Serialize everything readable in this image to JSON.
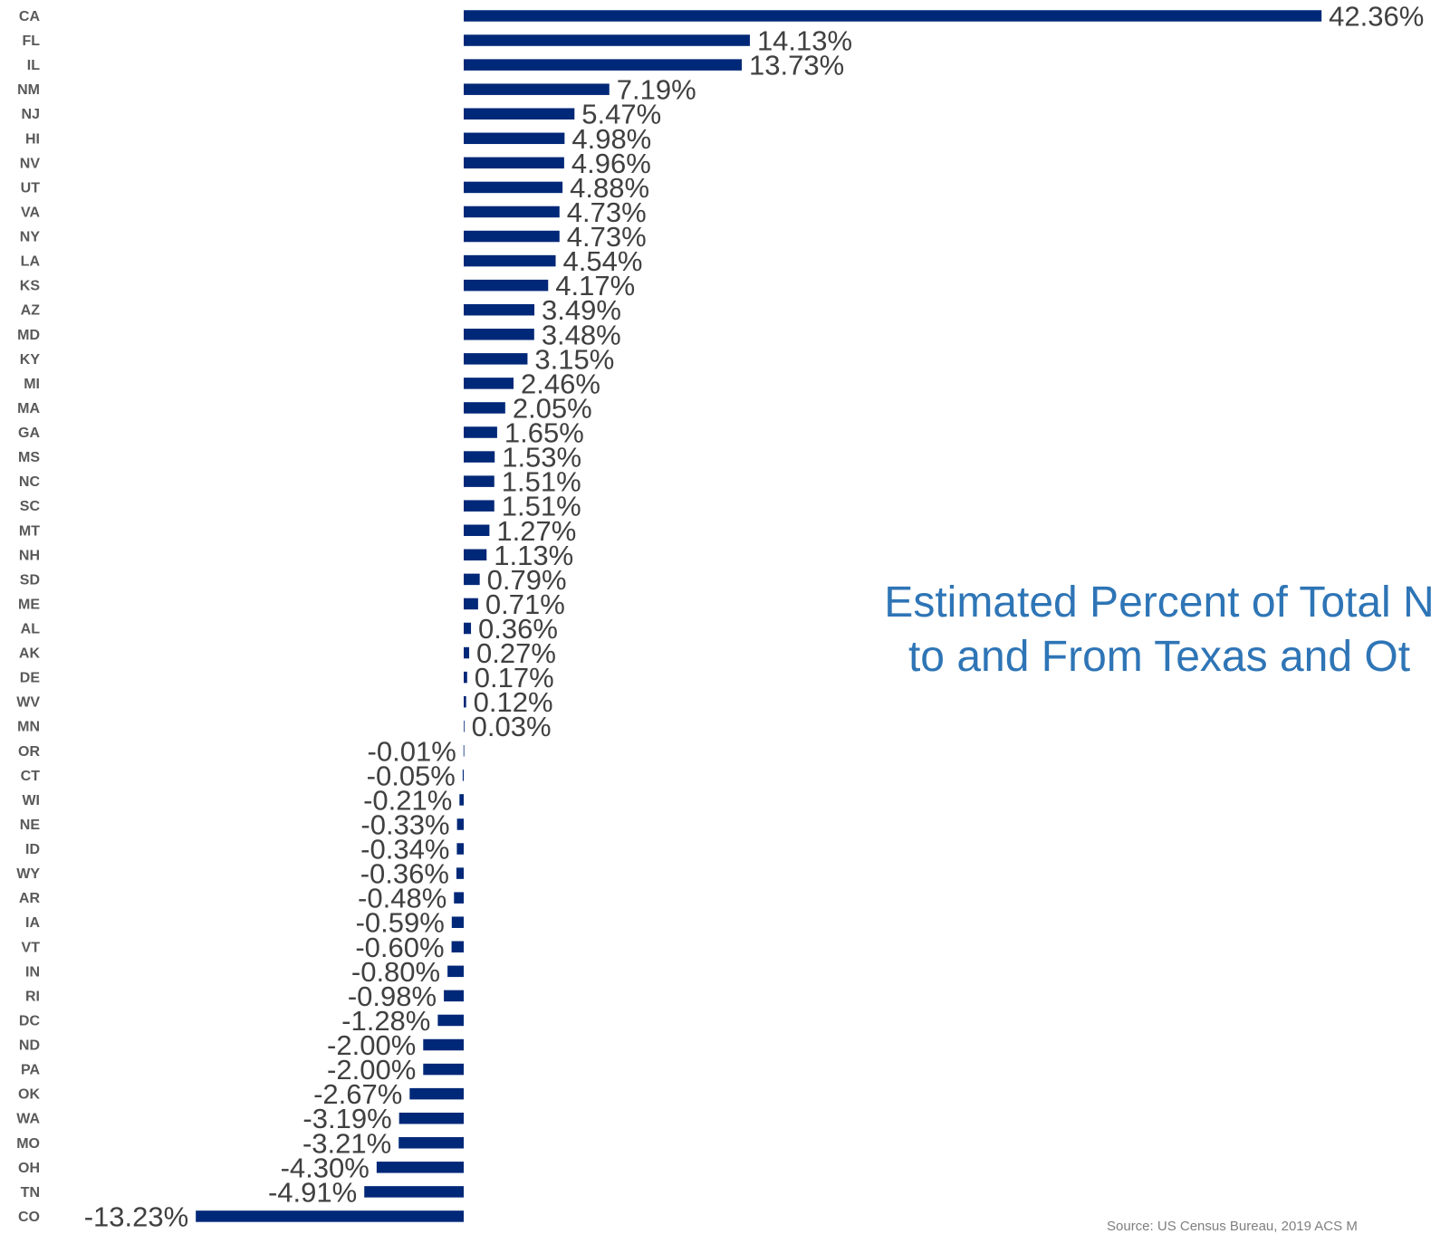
{
  "chart_data": {
    "type": "bar",
    "orientation": "horizontal",
    "title": "Estimated Percent of Total N\nto and From Texas and Ot",
    "source": "Source: US Census Bureau, 2019 ACS M",
    "bar_color": "#002878",
    "title_color": "#2e75b6",
    "categories": [
      "CA",
      "FL",
      "IL",
      "NM",
      "NJ",
      "HI",
      "NV",
      "UT",
      "VA",
      "NY",
      "LA",
      "KS",
      "AZ",
      "MD",
      "KY",
      "MI",
      "MA",
      "GA",
      "MS",
      "NC",
      "SC",
      "MT",
      "NH",
      "SD",
      "ME",
      "AL",
      "AK",
      "DE",
      "WV",
      "MN",
      "OR",
      "CT",
      "WI",
      "NE",
      "ID",
      "WY",
      "AR",
      "IA",
      "VT",
      "IN",
      "RI",
      "DC",
      "ND",
      "PA",
      "OK",
      "WA",
      "MO",
      "OH",
      "TN",
      "CO"
    ],
    "values": [
      42.36,
      14.13,
      13.73,
      7.19,
      5.47,
      4.98,
      4.96,
      4.88,
      4.73,
      4.73,
      4.54,
      4.17,
      3.49,
      3.48,
      3.15,
      2.46,
      2.05,
      1.65,
      1.53,
      1.51,
      1.51,
      1.27,
      1.13,
      0.79,
      0.71,
      0.36,
      0.27,
      0.17,
      0.12,
      0.03,
      -0.01,
      -0.05,
      -0.21,
      -0.33,
      -0.34,
      -0.36,
      -0.48,
      -0.59,
      -0.6,
      -0.8,
      -0.98,
      -1.28,
      -2.0,
      -2.0,
      -2.67,
      -3.19,
      -3.21,
      -4.3,
      -4.91,
      -13.23
    ],
    "labels": [
      "42.36%",
      "14.13%",
      "13.73%",
      "7.19%",
      "5.47%",
      "4.98%",
      "4.96%",
      "4.88%",
      "4.73%",
      "4.73%",
      "4.54%",
      "4.17%",
      "3.49%",
      "3.48%",
      "3.15%",
      "2.46%",
      "2.05%",
      "1.65%",
      "1.53%",
      "1.51%",
      "1.51%",
      "1.27%",
      "1.13%",
      "0.79%",
      "0.71%",
      "0.36%",
      "0.27%",
      "0.17%",
      "0.12%",
      "0.03%",
      "-0.01%",
      "-0.05%",
      "-0.21%",
      "-0.33%",
      "-0.34%",
      "-0.36%",
      "-0.48%",
      "-0.59%",
      "-0.60%",
      "-0.80%",
      "-0.98%",
      "-1.28%",
      "-2.00%",
      "-2.00%",
      "-2.67%",
      "-3.19%",
      "-3.21%",
      "-4.30%",
      "-4.91%",
      "-13.23%"
    ],
    "xlim": [
      -13.23,
      42.36
    ],
    "grid": false
  }
}
